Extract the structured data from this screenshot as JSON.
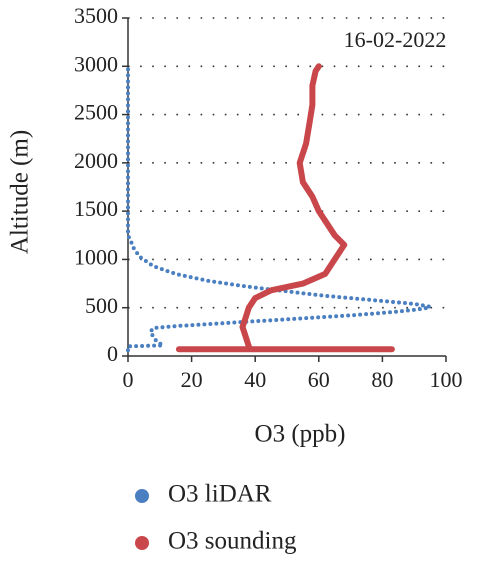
{
  "chart_data": {
    "type": "scatter",
    "annotation": "16-02-2022",
    "xlabel": "O3 (ppb)",
    "ylabel": "Altitude (m)",
    "xlim": [
      0,
      100
    ],
    "xticks": [
      0,
      20,
      40,
      60,
      80,
      100
    ],
    "ylim": [
      0,
      3500
    ],
    "yticks": [
      0,
      500,
      1000,
      1500,
      2000,
      2500,
      3000,
      3500
    ],
    "grid": true,
    "series": [
      {
        "name": "O3 liDAR",
        "color": "#4a7fc1",
        "x": [
          0,
          0,
          11,
          9,
          8,
          7,
          8,
          15,
          30,
          50,
          70,
          85,
          93,
          95,
          90,
          80,
          70,
          60,
          50,
          42,
          35,
          25,
          15,
          8,
          4,
          2,
          1,
          0,
          0,
          0,
          0,
          0
        ],
        "values": [
          60,
          100,
          110,
          150,
          200,
          250,
          290,
          310,
          340,
          380,
          420,
          460,
          490,
          510,
          540,
          570,
          600,
          630,
          670,
          700,
          730,
          780,
          850,
          930,
          1020,
          1100,
          1180,
          1250,
          1500,
          2000,
          2500,
          3000
        ]
      },
      {
        "name": "O3 sounding",
        "color": "#c9474a",
        "x": [
          16,
          25,
          35,
          45,
          55,
          65,
          75,
          83,
          null,
          38,
          37,
          36,
          37,
          38,
          40,
          45,
          55,
          62,
          65,
          68,
          65,
          62,
          60,
          58,
          55,
          54,
          56,
          57,
          58,
          58,
          59,
          60
        ],
        "values": [
          70,
          70,
          70,
          70,
          70,
          70,
          70,
          70,
          null,
          100,
          200,
          300,
          400,
          500,
          600,
          680,
          750,
          850,
          1000,
          1150,
          1250,
          1400,
          1500,
          1650,
          1800,
          2000,
          2200,
          2400,
          2600,
          2800,
          2950,
          3000
        ]
      }
    ]
  }
}
